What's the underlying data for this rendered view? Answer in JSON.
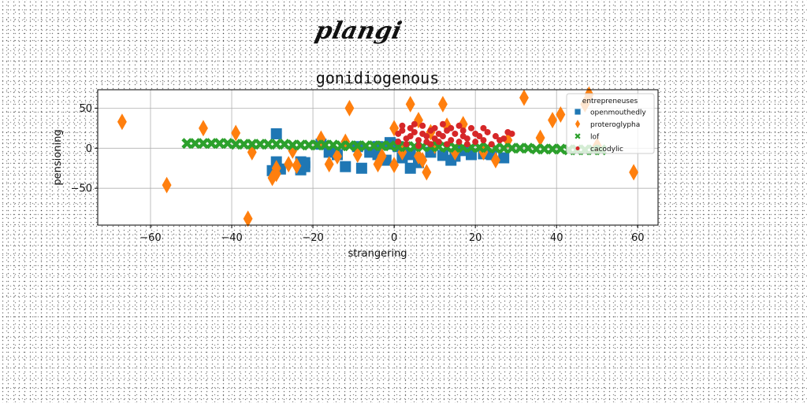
{
  "brand_text": "plangi",
  "chart_data": {
    "type": "scatter",
    "title": "gonidiogenous",
    "xlabel": "strangering",
    "ylabel": "pensioning",
    "xlim": [
      -73,
      65
    ],
    "ylim": [
      -96,
      73
    ],
    "xticks": [
      -60,
      -40,
      -20,
      0,
      20,
      40,
      60
    ],
    "yticks": [
      -50,
      0,
      50
    ],
    "grid": true,
    "legend": {
      "title": "entrepreneuses",
      "placement": "top-right"
    },
    "series": [
      {
        "name": "openmouthedly",
        "color": "#1f77b4",
        "marker": "square",
        "points": [
          [
            -29,
            18
          ],
          [
            -29,
            -17
          ],
          [
            -23,
            -17
          ],
          [
            -22,
            -18
          ],
          [
            -22,
            -23
          ],
          [
            -23,
            -27
          ],
          [
            -30,
            -28
          ],
          [
            -28,
            -26
          ],
          [
            -18,
            5
          ],
          [
            -16,
            -5
          ],
          [
            -12,
            -23
          ],
          [
            -8,
            -25
          ],
          [
            -9,
            2
          ],
          [
            -6,
            -5
          ],
          [
            -4,
            2
          ],
          [
            -4,
            -8
          ],
          [
            -1,
            7
          ],
          [
            0,
            5
          ],
          [
            1,
            2
          ],
          [
            4,
            -8
          ],
          [
            4,
            -25
          ],
          [
            6,
            -18
          ],
          [
            9,
            -5
          ],
          [
            12,
            -9
          ],
          [
            14,
            -15
          ],
          [
            15,
            -10
          ],
          [
            17,
            -3
          ],
          [
            19,
            -8
          ],
          [
            22,
            -7
          ],
          [
            24,
            -8
          ],
          [
            27,
            -12
          ],
          [
            -14,
            -8
          ],
          [
            -2,
            -15
          ],
          [
            2,
            -12
          ]
        ]
      },
      {
        "name": "proteroglypha",
        "color": "#ff7f0e",
        "marker": "diamond",
        "points": [
          [
            -67,
            33
          ],
          [
            -56,
            -46
          ],
          [
            -47,
            25
          ],
          [
            -39,
            19
          ],
          [
            -36,
            -88
          ],
          [
            -35,
            -5
          ],
          [
            -30,
            -37
          ],
          [
            -29,
            -32
          ],
          [
            -29,
            -25
          ],
          [
            -26,
            -20
          ],
          [
            -25,
            -3
          ],
          [
            -24,
            -22
          ],
          [
            -18,
            12
          ],
          [
            -16,
            -20
          ],
          [
            -14,
            -10
          ],
          [
            -12,
            8
          ],
          [
            -11,
            50
          ],
          [
            -9,
            -8
          ],
          [
            -4,
            -20
          ],
          [
            -3,
            -10
          ],
          [
            0,
            25
          ],
          [
            0,
            -21
          ],
          [
            2,
            -5
          ],
          [
            4,
            55
          ],
          [
            6,
            -10
          ],
          [
            6,
            35
          ],
          [
            7,
            -15
          ],
          [
            8,
            -30
          ],
          [
            9,
            20
          ],
          [
            10,
            3
          ],
          [
            12,
            55
          ],
          [
            13,
            28
          ],
          [
            15,
            -5
          ],
          [
            17,
            30
          ],
          [
            22,
            -5
          ],
          [
            25,
            -15
          ],
          [
            28,
            10
          ],
          [
            32,
            63
          ],
          [
            36,
            13
          ],
          [
            39,
            35
          ],
          [
            41,
            42
          ],
          [
            47,
            55
          ],
          [
            48,
            67
          ],
          [
            50,
            3
          ],
          [
            59,
            -30
          ]
        ]
      },
      {
        "name": "lof",
        "color": "#2ca02c",
        "marker": "x",
        "points": [
          [
            -51,
            6
          ],
          [
            -49,
            6
          ],
          [
            -47,
            6
          ],
          [
            -45,
            6
          ],
          [
            -43,
            6
          ],
          [
            -41,
            6
          ],
          [
            -39,
            5
          ],
          [
            -37,
            5
          ],
          [
            -35,
            5
          ],
          [
            -33,
            5
          ],
          [
            -31,
            5
          ],
          [
            -29,
            5
          ],
          [
            -27,
            5
          ],
          [
            -25,
            4
          ],
          [
            -23,
            4
          ],
          [
            -21,
            4
          ],
          [
            -19,
            4
          ],
          [
            -17,
            4
          ],
          [
            -15,
            4
          ],
          [
            -13,
            3
          ],
          [
            -11,
            3
          ],
          [
            -9,
            3
          ],
          [
            -7,
            3
          ],
          [
            -5,
            3
          ],
          [
            -3,
            3
          ],
          [
            -1,
            3
          ],
          [
            1,
            2
          ],
          [
            3,
            2
          ],
          [
            5,
            2
          ],
          [
            7,
            2
          ],
          [
            9,
            2
          ],
          [
            11,
            2
          ],
          [
            13,
            1
          ],
          [
            15,
            1
          ],
          [
            17,
            1
          ],
          [
            19,
            1
          ],
          [
            21,
            1
          ],
          [
            23,
            1
          ],
          [
            25,
            0
          ],
          [
            27,
            0
          ],
          [
            29,
            0
          ],
          [
            31,
            0
          ],
          [
            33,
            0
          ],
          [
            35,
            -1
          ],
          [
            37,
            -1
          ],
          [
            39,
            -1
          ],
          [
            41,
            -1
          ],
          [
            43,
            -2
          ],
          [
            45,
            -2
          ],
          [
            47,
            -2
          ],
          [
            49,
            -2
          ],
          [
            51,
            -2
          ]
        ]
      },
      {
        "name": "cacodylic",
        "color": "#d62728",
        "marker": "circle",
        "points": [
          [
            1,
            18
          ],
          [
            1,
            8
          ],
          [
            2,
            28
          ],
          [
            2,
            22
          ],
          [
            3,
            12
          ],
          [
            3,
            5
          ],
          [
            4,
            25
          ],
          [
            4,
            15
          ],
          [
            5,
            30
          ],
          [
            5,
            20
          ],
          [
            6,
            10
          ],
          [
            6,
            3
          ],
          [
            7,
            28
          ],
          [
            7,
            18
          ],
          [
            8,
            8
          ],
          [
            8,
            15
          ],
          [
            9,
            22
          ],
          [
            9,
            5
          ],
          [
            10,
            25
          ],
          [
            10,
            12
          ],
          [
            11,
            18
          ],
          [
            11,
            8
          ],
          [
            12,
            30
          ],
          [
            12,
            15
          ],
          [
            13,
            22
          ],
          [
            13,
            5
          ],
          [
            14,
            10
          ],
          [
            14,
            25
          ],
          [
            15,
            18
          ],
          [
            16,
            8
          ],
          [
            16,
            28
          ],
          [
            17,
            15
          ],
          [
            17,
            22
          ],
          [
            18,
            5
          ],
          [
            18,
            12
          ],
          [
            19,
            25
          ],
          [
            20,
            18
          ],
          [
            20,
            8
          ],
          [
            21,
            15
          ],
          [
            22,
            25
          ],
          [
            22,
            10
          ],
          [
            23,
            20
          ],
          [
            24,
            5
          ],
          [
            25,
            15
          ],
          [
            26,
            10
          ],
          [
            27,
            12
          ],
          [
            28,
            20
          ],
          [
            29,
            18
          ]
        ]
      }
    ]
  }
}
